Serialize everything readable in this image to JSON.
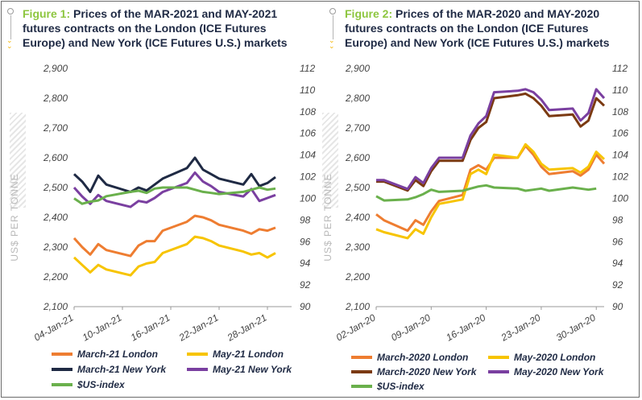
{
  "figure1": {
    "label": "Figure 1:",
    "title": "Prices of the MAR-2021 and MAY-2021 futures contracts on the London (ICE Futures Europe) and New York (ICE Futures U.S.) markets"
  },
  "figure2": {
    "label": "Figure 2:",
    "title": "Prices of the MAR-2020 and MAY-2020 futures contracts on the London (ICE Futures Europe) and New York (ICE Futures U.S.) markets"
  },
  "colors": {
    "march_london": "#ee7d31",
    "may_london": "#f7c400",
    "march_newyork_2021": "#1f2a44",
    "march_newyork_2020": "#7b3a12",
    "may_newyork": "#7a3fa0",
    "usd_index": "#6ab04c",
    "figure_label": "#8dc63f"
  },
  "chart_data": [
    {
      "type": "line",
      "ylabel": "US$ PER TONNE",
      "ylim": [
        2100,
        2900
      ],
      "yticks": [
        "2,100",
        "2,200",
        "2,300",
        "2,400",
        "2,500",
        "2,600",
        "2,700",
        "2,800",
        "2,900"
      ],
      "y2lim": [
        90,
        112
      ],
      "y2ticks": [
        "90",
        "92",
        "94",
        "96",
        "98",
        "100",
        "102",
        "104",
        "106",
        "108",
        "110",
        "112"
      ],
      "xlim": [
        4,
        31
      ],
      "xticks": [
        {
          "x": 4,
          "label": "04-Jan-21"
        },
        {
          "x": 10,
          "label": "10-Jan-21"
        },
        {
          "x": 16,
          "label": "16-Jan-21"
        },
        {
          "x": 22,
          "label": "22-Jan-21"
        },
        {
          "x": 28,
          "label": "28-Jan-21"
        }
      ],
      "series": [
        {
          "name": "March-21 London",
          "key": "march_london",
          "axis": "left",
          "x": [
            4,
            5,
            6,
            7,
            8,
            11,
            12,
            13,
            14,
            15,
            18,
            19,
            20,
            21,
            22,
            25,
            26,
            27,
            28,
            29
          ],
          "y": [
            2330,
            2300,
            2275,
            2310,
            2290,
            2270,
            2305,
            2320,
            2320,
            2355,
            2385,
            2405,
            2400,
            2390,
            2375,
            2355,
            2345,
            2360,
            2355,
            2365
          ]
        },
        {
          "name": "May-21 London",
          "key": "may_london",
          "axis": "left",
          "x": [
            4,
            5,
            6,
            7,
            8,
            11,
            12,
            13,
            14,
            15,
            18,
            19,
            20,
            21,
            22,
            25,
            26,
            27,
            28,
            29
          ],
          "y": [
            2265,
            2240,
            2215,
            2240,
            2225,
            2205,
            2235,
            2245,
            2250,
            2280,
            2310,
            2335,
            2330,
            2320,
            2305,
            2285,
            2275,
            2280,
            2265,
            2280
          ]
        },
        {
          "name": "March-21 New York",
          "key": "march_newyork_2021",
          "axis": "left",
          "x": [
            4,
            5,
            6,
            7,
            8,
            11,
            12,
            13,
            14,
            15,
            18,
            19,
            20,
            21,
            22,
            25,
            26,
            27,
            28,
            29
          ],
          "y": [
            2545,
            2520,
            2485,
            2540,
            2510,
            2485,
            2500,
            2490,
            2510,
            2530,
            2565,
            2600,
            2560,
            2545,
            2530,
            2510,
            2545,
            2505,
            2515,
            2535
          ]
        },
        {
          "name": "May-21 New York",
          "key": "may_newyork",
          "axis": "left",
          "x": [
            4,
            5,
            6,
            7,
            8,
            11,
            12,
            13,
            14,
            15,
            18,
            19,
            20,
            21,
            22,
            25,
            26,
            27,
            28,
            29
          ],
          "y": [
            2500,
            2470,
            2445,
            2475,
            2455,
            2435,
            2455,
            2450,
            2465,
            2485,
            2515,
            2550,
            2520,
            2505,
            2485,
            2470,
            2495,
            2455,
            2465,
            2475
          ]
        },
        {
          "name": "$US-index",
          "key": "usd_index",
          "axis": "right",
          "x": [
            4,
            5,
            6,
            7,
            8,
            11,
            12,
            13,
            14,
            15,
            18,
            19,
            20,
            21,
            22,
            25,
            26,
            27,
            28,
            29
          ],
          "y": [
            100.0,
            99.5,
            99.7,
            99.8,
            100.2,
            100.6,
            100.7,
            100.5,
            100.9,
            101.0,
            101.0,
            100.8,
            100.6,
            100.5,
            100.4,
            100.6,
            100.8,
            101.0,
            100.8,
            100.9
          ]
        }
      ]
    },
    {
      "type": "line",
      "ylabel": "US$ PER TONNE",
      "ylim": [
        2100,
        2900
      ],
      "yticks": [
        "2,100",
        "2,200",
        "2,300",
        "2,400",
        "2,500",
        "2,600",
        "2,700",
        "2,800",
        "2,900"
      ],
      "y2lim": [
        90,
        112
      ],
      "y2ticks": [
        "90",
        "92",
        "94",
        "96",
        "98",
        "100",
        "102",
        "104",
        "106",
        "108",
        "110",
        "112"
      ],
      "xlim": [
        2,
        31
      ],
      "xticks": [
        {
          "x": 2,
          "label": "02-Jan-20"
        },
        {
          "x": 9,
          "label": "09-Jan-20"
        },
        {
          "x": 16,
          "label": "16-Jan-20"
        },
        {
          "x": 23,
          "label": "23-Jan-20"
        },
        {
          "x": 30,
          "label": "30-Jan-20"
        }
      ],
      "series": [
        {
          "name": "March-2020 London",
          "key": "march_london",
          "axis": "left",
          "x": [
            2,
            3,
            6,
            7,
            8,
            9,
            10,
            13,
            14,
            15,
            16,
            17,
            20,
            21,
            22,
            23,
            24,
            27,
            28,
            29,
            30,
            31
          ],
          "y": [
            2410,
            2390,
            2355,
            2390,
            2375,
            2420,
            2455,
            2475,
            2560,
            2575,
            2560,
            2600,
            2600,
            2640,
            2610,
            2570,
            2545,
            2555,
            2540,
            2560,
            2610,
            2580
          ]
        },
        {
          "name": "May-2020 London",
          "key": "may_london",
          "axis": "left",
          "x": [
            2,
            3,
            6,
            7,
            8,
            9,
            10,
            13,
            14,
            15,
            16,
            17,
            20,
            21,
            22,
            23,
            24,
            27,
            28,
            29,
            30,
            31
          ],
          "y": [
            2360,
            2350,
            2330,
            2360,
            2345,
            2400,
            2445,
            2460,
            2545,
            2560,
            2545,
            2610,
            2600,
            2645,
            2620,
            2580,
            2560,
            2565,
            2550,
            2570,
            2620,
            2595
          ]
        },
        {
          "name": "March-2020 New York",
          "key": "march_newyork_2020",
          "axis": "left",
          "x": [
            2,
            3,
            6,
            7,
            8,
            9,
            10,
            13,
            14,
            15,
            16,
            17,
            20,
            21,
            22,
            23,
            24,
            27,
            28,
            29,
            30,
            31
          ],
          "y": [
            2520,
            2520,
            2490,
            2525,
            2505,
            2555,
            2590,
            2590,
            2660,
            2700,
            2720,
            2800,
            2810,
            2815,
            2800,
            2775,
            2740,
            2745,
            2705,
            2725,
            2800,
            2775
          ]
        },
        {
          "name": "May-2020 New York",
          "key": "may_newyork",
          "axis": "left",
          "x": [
            2,
            3,
            6,
            7,
            8,
            9,
            10,
            13,
            14,
            15,
            16,
            17,
            20,
            21,
            22,
            23,
            24,
            27,
            28,
            29,
            30,
            31
          ],
          "y": [
            2525,
            2525,
            2495,
            2535,
            2515,
            2565,
            2600,
            2600,
            2675,
            2715,
            2740,
            2820,
            2825,
            2830,
            2820,
            2795,
            2760,
            2765,
            2725,
            2750,
            2830,
            2800
          ]
        },
        {
          "name": "$US-index",
          "key": "usd_index",
          "axis": "right",
          "x": [
            2,
            3,
            6,
            7,
            8,
            9,
            10,
            13,
            14,
            15,
            16,
            17,
            20,
            21,
            22,
            23,
            24,
            27,
            28,
            29,
            30
          ],
          "y": [
            100.2,
            99.8,
            99.9,
            100.1,
            100.4,
            100.8,
            100.6,
            100.7,
            100.9,
            101.1,
            101.2,
            101.0,
            100.9,
            100.7,
            100.8,
            100.9,
            100.7,
            101.0,
            100.9,
            100.8,
            100.9
          ]
        }
      ]
    }
  ]
}
